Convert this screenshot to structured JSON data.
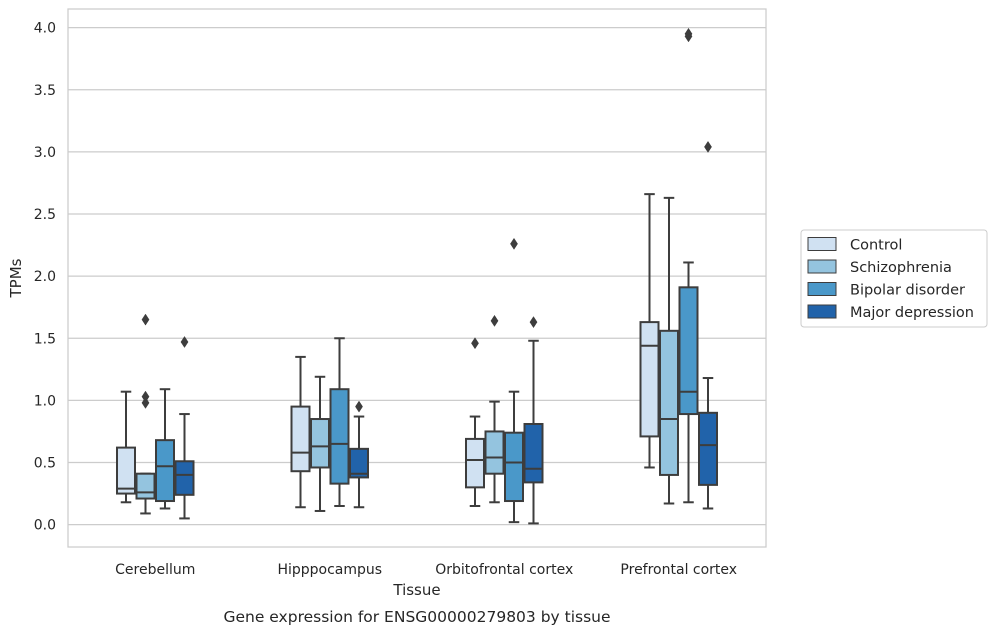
{
  "chart_data": {
    "type": "box",
    "xlabel": "Tissue",
    "ylabel": "TPMs",
    "caption": "Gene expression for ENSG00000279803 by tissue",
    "ylim": [
      -0.18,
      4.15
    ],
    "yticks": [
      "0.0",
      "0.5",
      "1.0",
      "1.5",
      "2.0",
      "2.5",
      "3.0",
      "3.5",
      "4.0"
    ],
    "grid": "horizontal",
    "legend_position": "right",
    "categories": [
      "Cerebellum",
      "Hipppocampus",
      "Orbitofrontal cortex",
      "Prefrontal cortex"
    ],
    "series": [
      {
        "name": "Control",
        "color": "#d0e1f2",
        "boxes": [
          {
            "whislo": 0.18,
            "q1": 0.25,
            "med": 0.29,
            "q3": 0.62,
            "whishi": 1.07,
            "fliers": []
          },
          {
            "whislo": 0.14,
            "q1": 0.43,
            "med": 0.58,
            "q3": 0.95,
            "whishi": 1.35,
            "fliers": []
          },
          {
            "whislo": 0.15,
            "q1": 0.3,
            "med": 0.52,
            "q3": 0.69,
            "whishi": 0.87,
            "fliers": [
              1.46
            ]
          },
          {
            "whislo": 0.46,
            "q1": 0.71,
            "med": 1.44,
            "q3": 1.63,
            "whishi": 2.66,
            "fliers": []
          }
        ]
      },
      {
        "name": "Schizophrenia",
        "color": "#94c4df",
        "boxes": [
          {
            "whislo": 0.09,
            "q1": 0.21,
            "med": 0.26,
            "q3": 0.41,
            "whishi": 0.41,
            "fliers": [
              0.98,
              1.03,
              1.65
            ]
          },
          {
            "whislo": 0.11,
            "q1": 0.46,
            "med": 0.63,
            "q3": 0.85,
            "whishi": 1.19,
            "fliers": []
          },
          {
            "whislo": 0.18,
            "q1": 0.41,
            "med": 0.54,
            "q3": 0.75,
            "whishi": 0.99,
            "fliers": [
              1.64
            ]
          },
          {
            "whislo": 0.17,
            "q1": 0.4,
            "med": 0.85,
            "q3": 1.56,
            "whishi": 2.63,
            "fliers": []
          }
        ]
      },
      {
        "name": "Bipolar disorder",
        "color": "#4a98c9",
        "boxes": [
          {
            "whislo": 0.13,
            "q1": 0.19,
            "med": 0.47,
            "q3": 0.68,
            "whishi": 1.09,
            "fliers": []
          },
          {
            "whislo": 0.15,
            "q1": 0.33,
            "med": 0.65,
            "q3": 1.09,
            "whishi": 1.5,
            "fliers": []
          },
          {
            "whislo": 0.02,
            "q1": 0.19,
            "med": 0.5,
            "q3": 0.74,
            "whishi": 1.07,
            "fliers": [
              2.26
            ]
          },
          {
            "whislo": 0.18,
            "q1": 0.89,
            "med": 1.07,
            "q3": 1.91,
            "whishi": 2.11,
            "fliers": [
              3.93,
              3.95
            ]
          }
        ]
      },
      {
        "name": "Major depression",
        "color": "#2163aa",
        "boxes": [
          {
            "whislo": 0.05,
            "q1": 0.24,
            "med": 0.4,
            "q3": 0.51,
            "whishi": 0.89,
            "fliers": [
              1.47
            ]
          },
          {
            "whislo": 0.14,
            "q1": 0.38,
            "med": 0.41,
            "q3": 0.61,
            "whishi": 0.87,
            "fliers": [
              0.95
            ]
          },
          {
            "whislo": 0.01,
            "q1": 0.34,
            "med": 0.45,
            "q3": 0.81,
            "whishi": 1.48,
            "fliers": [
              1.63
            ]
          },
          {
            "whislo": 0.13,
            "q1": 0.32,
            "med": 0.64,
            "q3": 0.9,
            "whishi": 1.18,
            "fliers": [
              3.04
            ]
          }
        ]
      }
    ]
  }
}
